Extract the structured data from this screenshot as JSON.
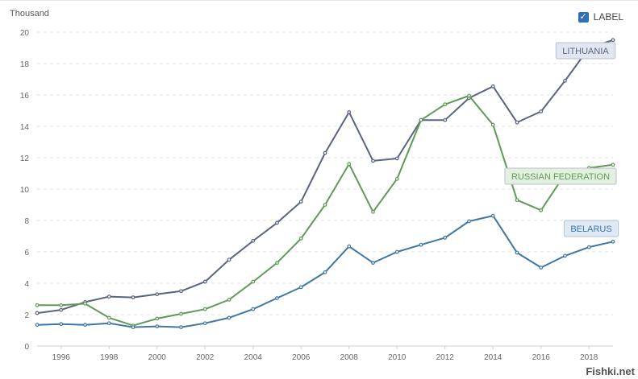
{
  "legend": {
    "label": "LABEL",
    "checked": true
  },
  "watermark": "Fishki.net",
  "chart_data": {
    "type": "line",
    "ylabel": "Thousand",
    "xlim": [
      1995,
      2019
    ],
    "ylim": [
      0,
      20
    ],
    "x_ticks": [
      1996,
      1998,
      2000,
      2002,
      2004,
      2006,
      2008,
      2010,
      2012,
      2014,
      2016,
      2018
    ],
    "y_ticks": [
      0,
      2,
      4,
      6,
      8,
      10,
      12,
      14,
      16,
      18,
      20
    ],
    "grid": true,
    "x": [
      1995,
      1996,
      1997,
      1998,
      1999,
      2000,
      2001,
      2002,
      2003,
      2004,
      2005,
      2006,
      2007,
      2008,
      2009,
      2010,
      2011,
      2012,
      2013,
      2014,
      2015,
      2016,
      2017,
      2018,
      2019
    ],
    "series": [
      {
        "name": "LITHUANIA",
        "color": "#5a6482",
        "label_bg": "#e3e6f0",
        "values": [
          2.1,
          2.3,
          2.8,
          3.15,
          3.1,
          3.3,
          3.5,
          4.1,
          5.5,
          6.7,
          7.85,
          9.2,
          12.3,
          14.9,
          11.8,
          11.95,
          14.4,
          14.4,
          15.8,
          16.55,
          14.25,
          14.95,
          16.9,
          19.0,
          19.5
        ]
      },
      {
        "name": "RUSSIAN FEDERATION",
        "color": "#5f9a58",
        "label_bg": "#e3f0df",
        "values": [
          2.6,
          2.6,
          2.7,
          1.8,
          1.3,
          1.75,
          2.05,
          2.35,
          2.95,
          4.1,
          5.3,
          6.85,
          9.0,
          11.6,
          8.55,
          10.65,
          14.4,
          15.4,
          15.95,
          14.1,
          9.3,
          8.65,
          10.95,
          11.35,
          11.55
        ]
      },
      {
        "name": "BELARUS",
        "color": "#3f77a3",
        "label_bg": "#dde9f4",
        "values": [
          1.35,
          1.4,
          1.35,
          1.45,
          1.2,
          1.25,
          1.2,
          1.45,
          1.8,
          2.35,
          3.05,
          3.75,
          4.7,
          6.35,
          5.3,
          6.0,
          6.45,
          6.9,
          7.95,
          8.3,
          5.95,
          5.0,
          5.75,
          6.3,
          6.65
        ]
      }
    ]
  }
}
